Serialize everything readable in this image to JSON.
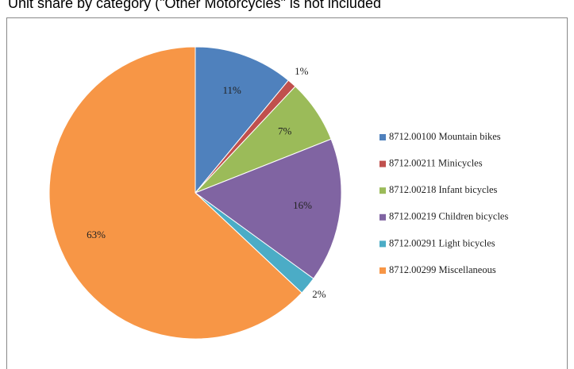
{
  "chart_data": {
    "type": "pie",
    "title": "Unit share by category (\"Other Motorcycles\" is not included",
    "categories": [
      "8712.00100 Mountain bikes",
      "8712.00211 Minicycles",
      "8712.00218 Infant bicycles",
      "8712.00219 Children bicycles",
      "8712.00291 Light bicycles",
      "8712.00299 Miscellaneous"
    ],
    "values": [
      11,
      1,
      7,
      16,
      2,
      63
    ],
    "value_labels": [
      "11%",
      "1%",
      "7%",
      "16%",
      "2%",
      "63%"
    ],
    "colors": [
      "#4f81bd",
      "#c0504d",
      "#9bbb59",
      "#8064a2",
      "#4bacc6",
      "#f79646"
    ],
    "legend": "right"
  }
}
